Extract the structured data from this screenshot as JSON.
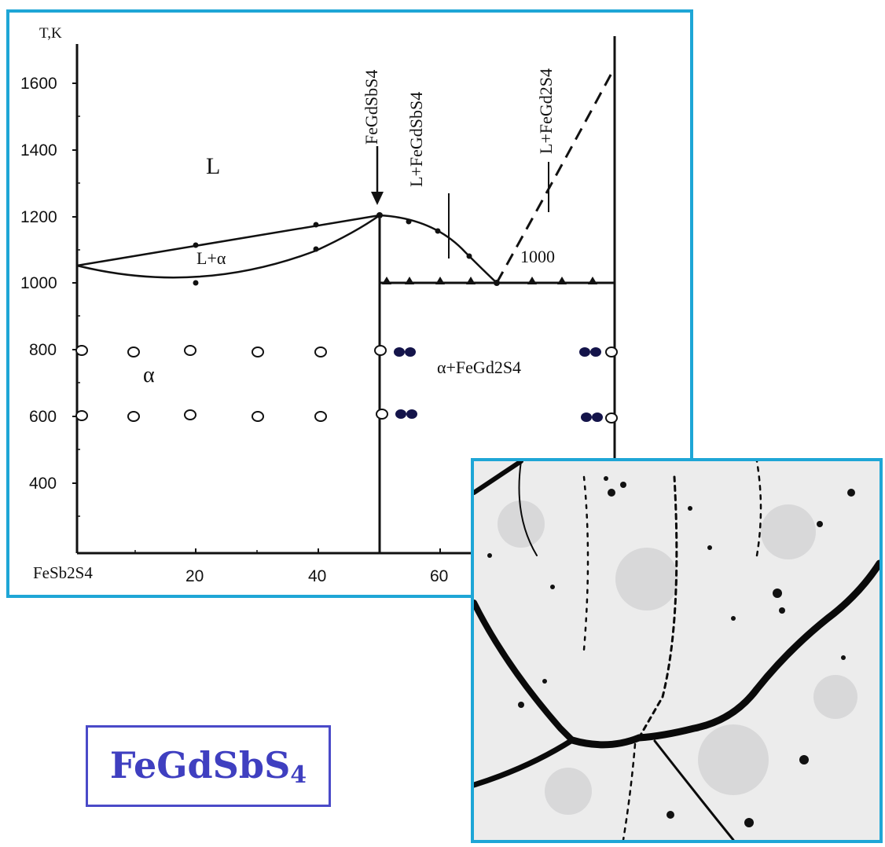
{
  "diagram": {
    "y_axis_label": "T,K",
    "y_ticks": [
      "1600",
      "1400",
      "1200",
      "1000",
      "800",
      "600",
      "400"
    ],
    "x_ticks": [
      "FeSb2S4",
      "20",
      "40",
      "60"
    ],
    "regions": {
      "liquid": "L",
      "l_alpha": "L+α",
      "alpha": "α",
      "alpha_fegd2s4": "α+FeGd2S4"
    },
    "phase_labels": {
      "fegdsbs4": "FeGdSbS4",
      "l_fegdsbs4": "L+FeGdSbS4",
      "l_fegd2s4": "L+FeGd2S4"
    },
    "eutectic_temp": "1000"
  },
  "compound_label": {
    "formula_main": "FeGdSbS",
    "formula_sub": "4"
  },
  "micrograph": {
    "icon": "micrograph-image"
  }
}
